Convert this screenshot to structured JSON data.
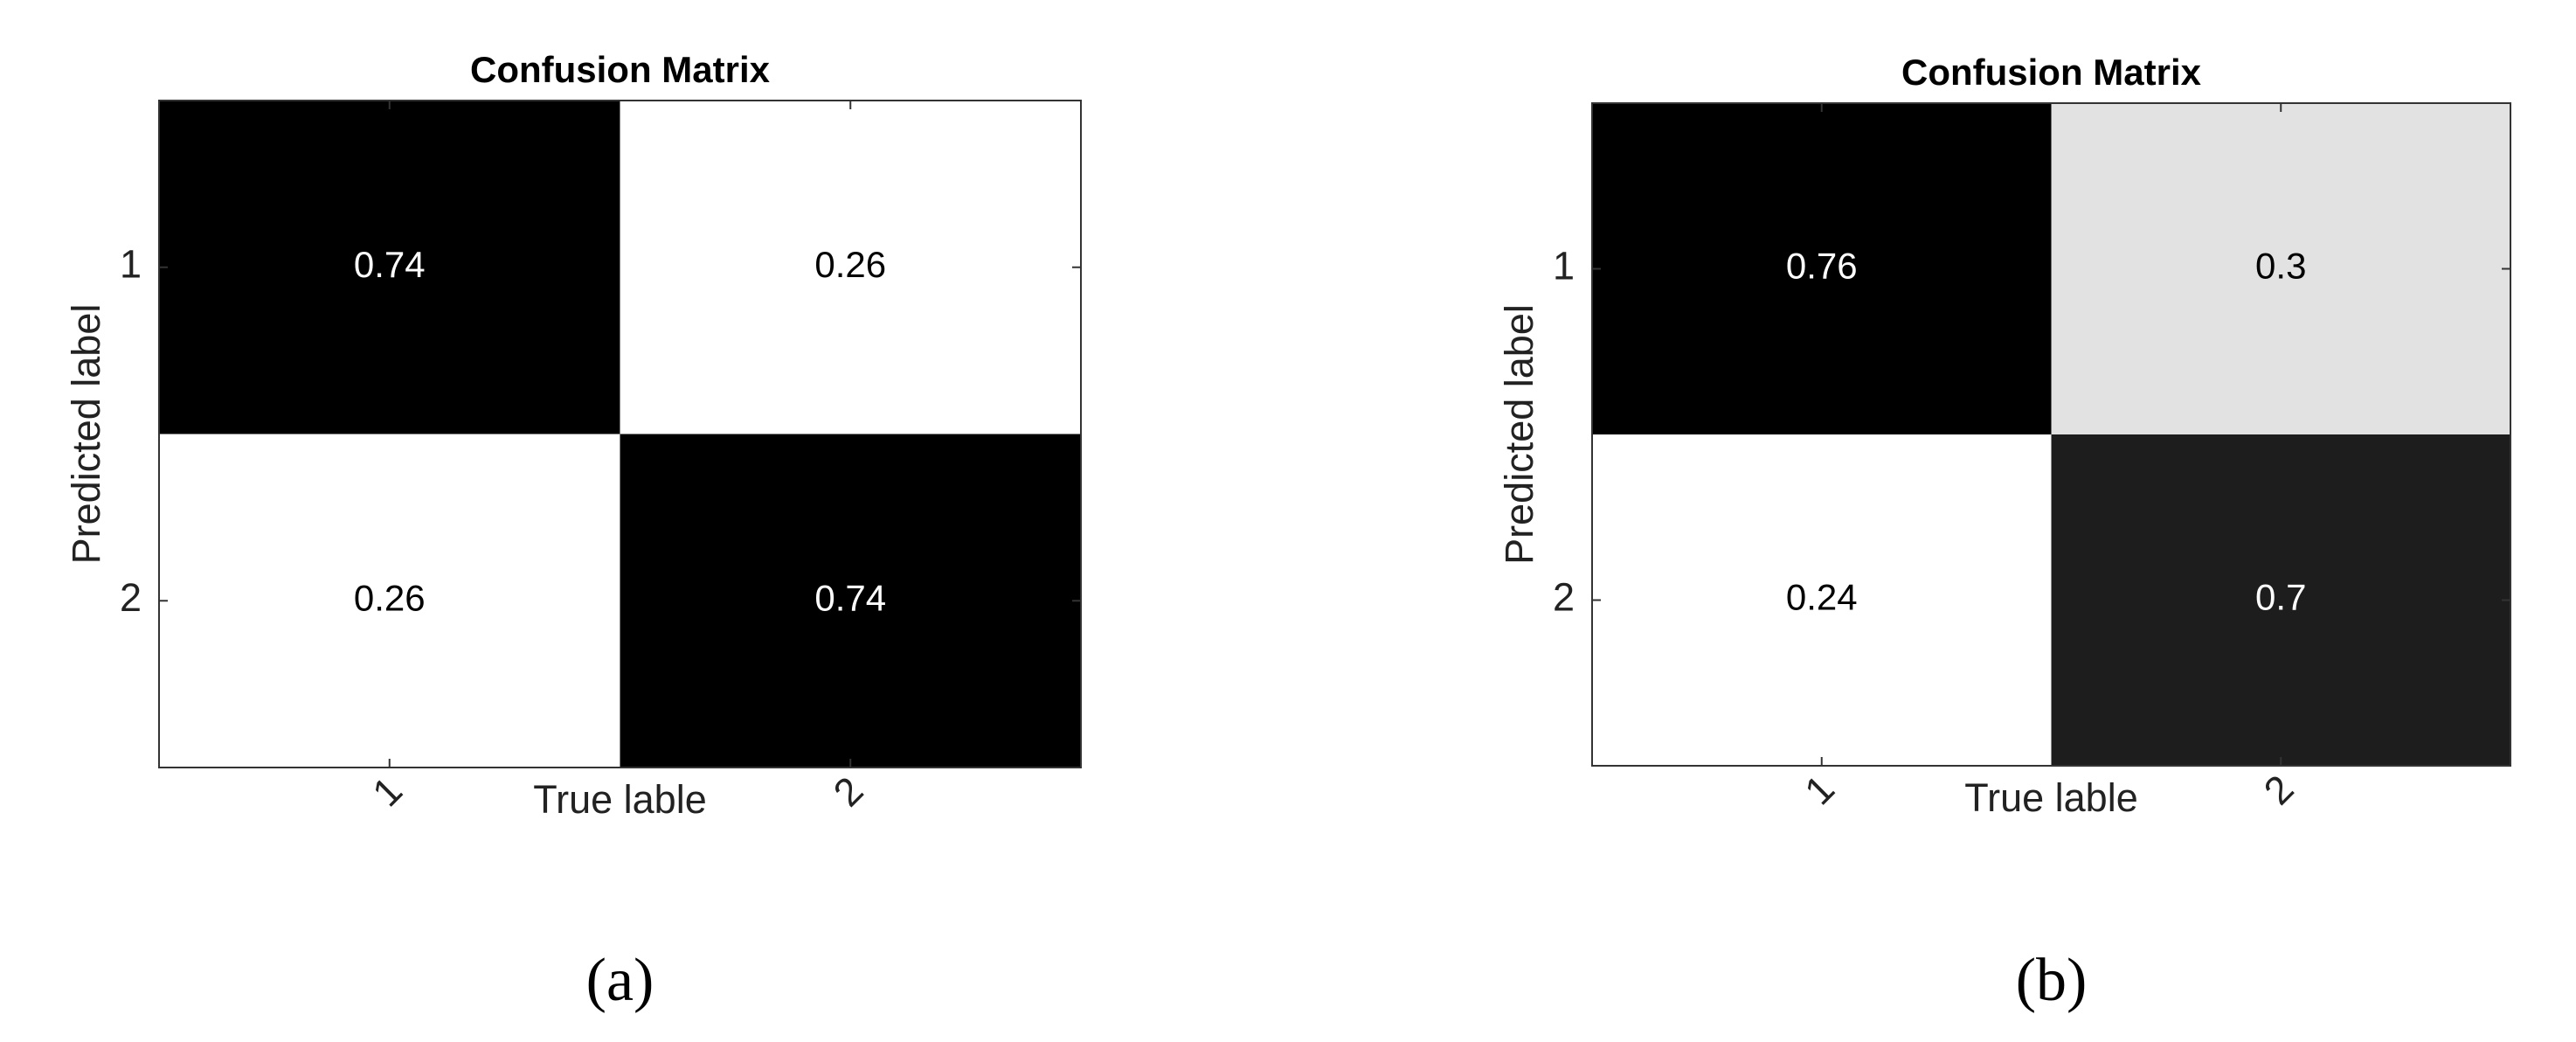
{
  "chart_data": [
    {
      "type": "heatmap",
      "title": "Confusion Matrix",
      "xlabel": "True lable",
      "ylabel": "Predicted label",
      "x_categories": [
        "1",
        "2"
      ],
      "y_categories": [
        "1",
        "2"
      ],
      "values": [
        [
          0.74,
          0.26
        ],
        [
          0.26,
          0.74
        ]
      ],
      "caption": "(a)"
    },
    {
      "type": "heatmap",
      "title": "Confusion Matrix",
      "xlabel": "True lable",
      "ylabel": "Predicted label",
      "x_categories": [
        "1",
        "2"
      ],
      "y_categories": [
        "1",
        "2"
      ],
      "values": [
        [
          0.76,
          0.3
        ],
        [
          0.24,
          0.7
        ]
      ],
      "caption": "(b)"
    }
  ]
}
